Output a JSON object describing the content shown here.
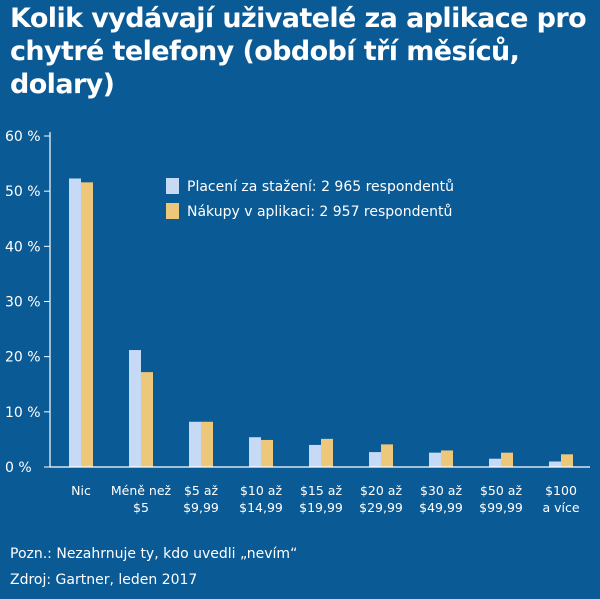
{
  "chart_data": {
    "type": "bar",
    "title": "Kolik vydávají uživatelé za aplikace pro chytré telefony (období tří měsíců, dolary)",
    "xlabel": "",
    "ylabel": "",
    "ylim": [
      0,
      60
    ],
    "yticks": [
      "0 %",
      "10 %",
      "20 %",
      "30 %",
      "40 %",
      "50 %",
      "60 %"
    ],
    "categories": [
      [
        "Nic"
      ],
      [
        "Méně než",
        "$5"
      ],
      [
        "$5 až",
        "$9,99"
      ],
      [
        "$10 až",
        "$14,99"
      ],
      [
        "$15 až",
        "$19,99"
      ],
      [
        "$20 až",
        "$29,99"
      ],
      [
        "$30 až",
        "$49,99"
      ],
      [
        "$50 až",
        "$99,99"
      ],
      [
        "$100",
        "a více"
      ]
    ],
    "series": [
      {
        "name": "Placení za stažení: 2 965 respondentů",
        "color": "#c6d9f5",
        "values": [
          52.3,
          21.2,
          8.2,
          5.4,
          4.0,
          2.7,
          2.6,
          1.5,
          1.0
        ]
      },
      {
        "name": "Nákupy v aplikaci: 2 957 respondentů",
        "color": "#edc77a",
        "values": [
          51.6,
          17.2,
          8.2,
          4.9,
          5.1,
          4.1,
          3.0,
          2.6,
          2.3
        ]
      }
    ],
    "legend": "top-right",
    "grid": false
  },
  "notes": {
    "note": "Pozn.: Nezahrnuje ty, kdo uvedli „nevím“",
    "source": "Zdroj: Gartner, leden 2017"
  },
  "colors": {
    "background": "#0a5a96",
    "axis": "#ffffff"
  }
}
